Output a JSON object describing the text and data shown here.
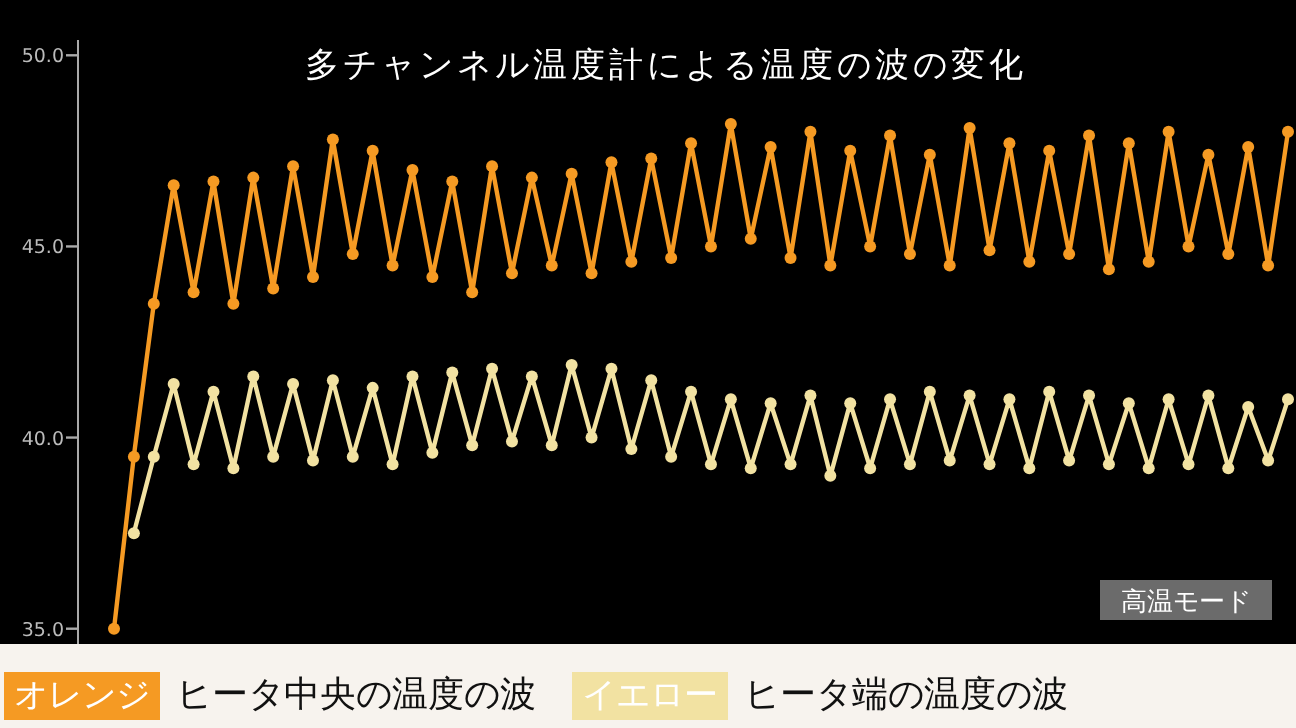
{
  "chart_data": {
    "type": "line",
    "title": "多チャンネル温度計による温度の波の変化",
    "categories": [
      null,
      null,
      null,
      null,
      null,
      null,
      null,
      null,
      null,
      null,
      null,
      null,
      null,
      null,
      null,
      null,
      null,
      null,
      null,
      null,
      null,
      null,
      null,
      null,
      null,
      null,
      null,
      null,
      null,
      null,
      null,
      null,
      null,
      null,
      null,
      null,
      null,
      null,
      null,
      null,
      null,
      null,
      null,
      null,
      null,
      null,
      null,
      null,
      null,
      null,
      null,
      null,
      null,
      null,
      null,
      null,
      null,
      null,
      null,
      null
    ],
    "series": [
      {
        "name": "ヒータ中央の温度の波",
        "color": "#f59a23",
        "values": [
          35.0,
          39.5,
          43.5,
          46.6,
          43.8,
          46.7,
          43.5,
          46.8,
          43.9,
          47.1,
          44.2,
          47.8,
          44.8,
          47.5,
          44.5,
          47.0,
          44.2,
          46.7,
          43.8,
          47.1,
          44.3,
          46.8,
          44.5,
          46.9,
          44.3,
          47.2,
          44.6,
          47.3,
          44.7,
          47.7,
          45.0,
          48.2,
          45.2,
          47.6,
          44.7,
          48.0,
          44.5,
          47.5,
          45.0,
          47.9,
          44.8,
          47.4,
          44.5,
          48.1,
          44.9,
          47.7,
          44.6,
          47.5,
          44.8,
          47.9,
          44.4,
          47.7,
          44.6,
          48.0,
          45.0,
          47.4,
          44.8,
          47.6,
          44.5,
          48.0
        ]
      },
      {
        "name": "ヒータ端の温度の波",
        "color": "#f2e2a2",
        "values": [
          null,
          37.5,
          39.5,
          41.4,
          39.3,
          41.2,
          39.2,
          41.6,
          39.5,
          41.4,
          39.4,
          41.5,
          39.5,
          41.3,
          39.3,
          41.6,
          39.6,
          41.7,
          39.8,
          41.8,
          39.9,
          41.6,
          39.8,
          41.9,
          40.0,
          41.8,
          39.7,
          41.5,
          39.5,
          41.2,
          39.3,
          41.0,
          39.2,
          40.9,
          39.3,
          41.1,
          39.0,
          40.9,
          39.2,
          41.0,
          39.3,
          41.2,
          39.4,
          41.1,
          39.3,
          41.0,
          39.2,
          41.2,
          39.4,
          41.1,
          39.3,
          40.9,
          39.2,
          41.0,
          39.3,
          41.1,
          39.2,
          40.8,
          39.4,
          41.0
        ]
      }
    ],
    "ylim": [
      34.6,
      50.4
    ],
    "yticks": [
      {
        "value": 35,
        "label": "35.0"
      },
      {
        "value": 40,
        "label": "40.0"
      },
      {
        "value": 45,
        "label": "45.0"
      },
      {
        "value": 50,
        "label": "50.0"
      }
    ],
    "marker": "circle",
    "line_style": "solid",
    "grid": false,
    "legend": "bottom",
    "annotations": [
      "高温モード",
      "オレンジ",
      "イエロー"
    ]
  }
}
